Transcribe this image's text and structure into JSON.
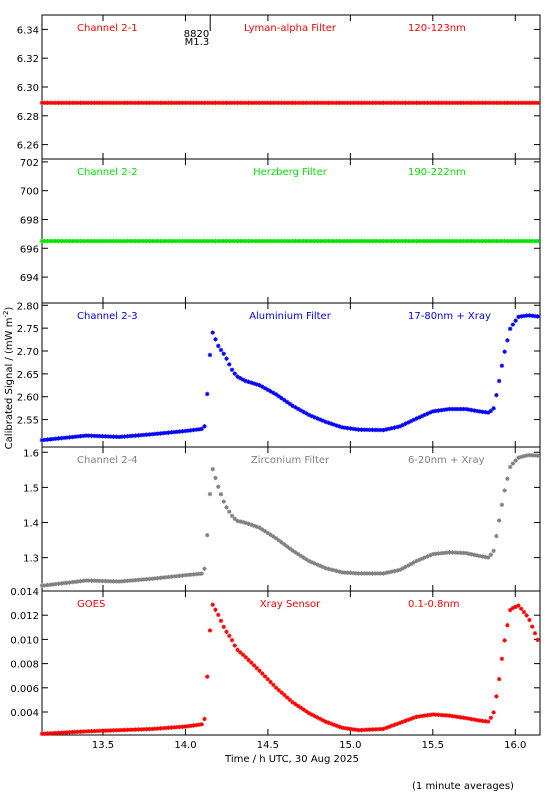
{
  "xlabel": "Time / h UTC, 30 Aug 2025",
  "ylabel": "Calibrated Signal / (mW m",
  "ylabel_sup": "-2",
  "ylabel_close": ")",
  "footnote": "(1 minute averages)",
  "colors": {
    "red": "#ff0000",
    "green": "#00e600",
    "blue": "#0000ff",
    "gray": "#808080"
  },
  "chart_data": [
    {
      "type": "scatter",
      "channel": "Channel 2-1",
      "filter": "Lyman-alpha Filter",
      "band": "120-123nm",
      "color": "#ff0000",
      "ylim": [
        6.25,
        6.35
      ],
      "yticks": [
        6.26,
        6.28,
        6.3,
        6.32,
        6.34
      ],
      "ytick_labels": [
        "6.26",
        "6.28",
        "6.30",
        "6.32",
        "6.34"
      ],
      "annotation": {
        "x": 14.15,
        "lines": [
          "8820",
          "M1.3"
        ]
      },
      "series": [
        {
          "x_range": [
            13.13,
            16.15
          ],
          "x_step": 0.0167,
          "values": [
            [
              13.13,
              6.289
            ],
            [
              16.15,
              6.289
            ]
          ]
        }
      ]
    },
    {
      "type": "scatter",
      "channel": "Channel 2-2",
      "filter": "Herzberg Filter",
      "band": "190-222nm",
      "color": "#00e600",
      "ylim": [
        692.2,
        702.2
      ],
      "yticks": [
        694,
        696,
        698,
        700,
        702
      ],
      "ytick_labels": [
        "694",
        "696",
        "698",
        "700",
        "702"
      ],
      "series": [
        {
          "x_range": [
            13.13,
            16.15
          ],
          "x_step": 0.0167,
          "values": [
            [
              13.13,
              696.5
            ],
            [
              16.15,
              696.5
            ]
          ]
        }
      ]
    },
    {
      "type": "scatter",
      "channel": "Channel 2-3",
      "filter": "Aluminium Filter",
      "band": "17-80nm + Xray",
      "color": "#0000ff",
      "ylim": [
        2.49,
        2.805
      ],
      "yticks": [
        2.55,
        2.6,
        2.65,
        2.7,
        2.75,
        2.8
      ],
      "ytick_labels": [
        "2.55",
        "2.60",
        "2.65",
        "2.70",
        "2.75",
        "2.80"
      ],
      "series": [
        {
          "x_step": 0.0167,
          "values": [
            [
              13.13,
              2.505
            ],
            [
              13.4,
              2.515
            ],
            [
              13.6,
              2.512
            ],
            [
              13.8,
              2.518
            ],
            [
              14.0,
              2.525
            ],
            [
              14.11,
              2.53
            ],
            [
              14.12,
              2.54
            ],
            [
              14.14,
              2.65
            ],
            [
              14.16,
              2.745
            ],
            [
              14.2,
              2.71
            ],
            [
              14.24,
              2.69
            ],
            [
              14.28,
              2.66
            ],
            [
              14.31,
              2.645
            ],
            [
              14.36,
              2.635
            ],
            [
              14.45,
              2.625
            ],
            [
              14.55,
              2.605
            ],
            [
              14.65,
              2.58
            ],
            [
              14.75,
              2.56
            ],
            [
              14.85,
              2.545
            ],
            [
              14.95,
              2.533
            ],
            [
              15.05,
              2.528
            ],
            [
              15.2,
              2.527
            ],
            [
              15.3,
              2.535
            ],
            [
              15.4,
              2.552
            ],
            [
              15.5,
              2.568
            ],
            [
              15.6,
              2.573
            ],
            [
              15.7,
              2.573
            ],
            [
              15.78,
              2.568
            ],
            [
              15.84,
              2.565
            ],
            [
              15.87,
              2.575
            ],
            [
              15.9,
              2.63
            ],
            [
              15.93,
              2.69
            ],
            [
              15.97,
              2.75
            ],
            [
              16.02,
              2.775
            ],
            [
              16.08,
              2.778
            ],
            [
              16.15,
              2.775
            ]
          ]
        }
      ]
    },
    {
      "type": "scatter",
      "channel": "Channel 2-4",
      "filter": "Zirconium Filter",
      "band": "6-20nm + Xray",
      "color": "#808080",
      "ylim": [
        1.205,
        1.615
      ],
      "yticks": [
        1.3,
        1.4,
        1.5,
        1.6
      ],
      "ytick_labels": [
        "1.3",
        "1.4",
        "1.5",
        "1.6"
      ],
      "series": [
        {
          "x_step": 0.0167,
          "values": [
            [
              13.13,
              1.22
            ],
            [
              13.4,
              1.235
            ],
            [
              13.6,
              1.232
            ],
            [
              13.8,
              1.24
            ],
            [
              14.0,
              1.25
            ],
            [
              14.11,
              1.255
            ],
            [
              14.12,
              1.28
            ],
            [
              14.14,
              1.42
            ],
            [
              14.16,
              1.56
            ],
            [
              14.2,
              1.5
            ],
            [
              14.24,
              1.45
            ],
            [
              14.28,
              1.42
            ],
            [
              14.31,
              1.405
            ],
            [
              14.36,
              1.4
            ],
            [
              14.45,
              1.385
            ],
            [
              14.55,
              1.355
            ],
            [
              14.65,
              1.32
            ],
            [
              14.75,
              1.29
            ],
            [
              14.85,
              1.27
            ],
            [
              14.95,
              1.258
            ],
            [
              15.05,
              1.255
            ],
            [
              15.2,
              1.255
            ],
            [
              15.3,
              1.265
            ],
            [
              15.4,
              1.29
            ],
            [
              15.5,
              1.31
            ],
            [
              15.6,
              1.315
            ],
            [
              15.7,
              1.313
            ],
            [
              15.78,
              1.305
            ],
            [
              15.84,
              1.3
            ],
            [
              15.87,
              1.32
            ],
            [
              15.9,
              1.4
            ],
            [
              15.93,
              1.48
            ],
            [
              15.97,
              1.56
            ],
            [
              16.02,
              1.585
            ],
            [
              16.08,
              1.592
            ],
            [
              16.15,
              1.59
            ]
          ]
        }
      ]
    },
    {
      "type": "scatter",
      "channel": "GOES",
      "filter": "Xray Sensor",
      "band": "0.1-0.8nm",
      "color": "#ff0000",
      "ylim": [
        0.0021,
        0.014
      ],
      "yticks": [
        0.004,
        0.006,
        0.008,
        0.01,
        0.012,
        0.014
      ],
      "ytick_labels": [
        "0.004",
        "0.006",
        "0.008",
        "0.010",
        "0.012",
        "0.014"
      ],
      "xlim": [
        13.13,
        16.15
      ],
      "xticks": [
        13.5,
        14.0,
        14.5,
        15.0,
        15.5,
        16.0
      ],
      "xtick_labels": [
        "13.5",
        "14.0",
        "14.5",
        "15.0",
        "15.5",
        "16.0"
      ],
      "series": [
        {
          "x_step": 0.0167,
          "values": [
            [
              13.13,
              0.0022
            ],
            [
              13.4,
              0.0024
            ],
            [
              13.6,
              0.0025
            ],
            [
              13.8,
              0.0026
            ],
            [
              14.0,
              0.0028
            ],
            [
              14.11,
              0.003
            ],
            [
              14.12,
              0.0038
            ],
            [
              14.14,
              0.009
            ],
            [
              14.16,
              0.013
            ],
            [
              14.2,
              0.012
            ],
            [
              14.24,
              0.0108
            ],
            [
              14.28,
              0.01
            ],
            [
              14.31,
              0.0092
            ],
            [
              14.36,
              0.0086
            ],
            [
              14.45,
              0.0074
            ],
            [
              14.55,
              0.006
            ],
            [
              14.65,
              0.0048
            ],
            [
              14.75,
              0.0039
            ],
            [
              14.85,
              0.0032
            ],
            [
              14.95,
              0.0027
            ],
            [
              15.05,
              0.0025
            ],
            [
              15.2,
              0.0026
            ],
            [
              15.3,
              0.0031
            ],
            [
              15.4,
              0.0036
            ],
            [
              15.5,
              0.0038
            ],
            [
              15.6,
              0.0037
            ],
            [
              15.7,
              0.0035
            ],
            [
              15.78,
              0.0033
            ],
            [
              15.84,
              0.0032
            ],
            [
              15.87,
              0.004
            ],
            [
              15.9,
              0.0065
            ],
            [
              15.93,
              0.0095
            ],
            [
              15.97,
              0.0125
            ],
            [
              16.02,
              0.0128
            ],
            [
              16.08,
              0.0118
            ],
            [
              16.15,
              0.0095
            ]
          ]
        }
      ]
    }
  ]
}
